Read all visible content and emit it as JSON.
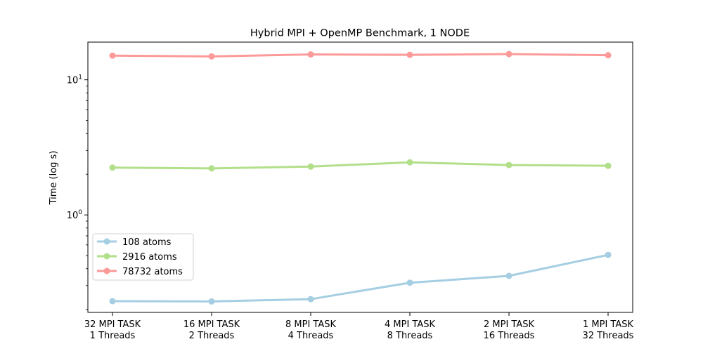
{
  "chart_data": {
    "type": "line",
    "title": "Hybrid MPI + OpenMP Benchmark, 1 NODE",
    "xlabel": "",
    "ylabel": "Time (log s)",
    "yscale": "log",
    "ylim": [
      0.19,
      19
    ],
    "yticks": [
      {
        "value": 1,
        "label_base": "10",
        "label_exp": "0"
      },
      {
        "value": 10,
        "label_base": "10",
        "label_exp": "1"
      }
    ],
    "categories": [
      [
        "32 MPI TASK",
        "1 Threads"
      ],
      [
        "16 MPI TASK",
        "2 Threads"
      ],
      [
        "8 MPI TASK",
        "4 Threads"
      ],
      [
        "4 MPI TASK",
        "8 Threads"
      ],
      [
        "2 MPI TASK",
        "16 Threads"
      ],
      [
        "1 MPI TASK",
        "32 Threads"
      ]
    ],
    "series": [
      {
        "name": "108 atoms",
        "color": "#a6cee3",
        "values": [
          0.23,
          0.229,
          0.238,
          0.315,
          0.354,
          0.506
        ]
      },
      {
        "name": "2916 atoms",
        "color": "#b2df8a",
        "values": [
          2.24,
          2.21,
          2.28,
          2.45,
          2.34,
          2.31
        ]
      },
      {
        "name": "78732 atoms",
        "color": "#fb9a99",
        "values": [
          15.1,
          14.9,
          15.4,
          15.3,
          15.5,
          15.2
        ]
      }
    ],
    "legend_position": "lower-left",
    "grid": false
  }
}
